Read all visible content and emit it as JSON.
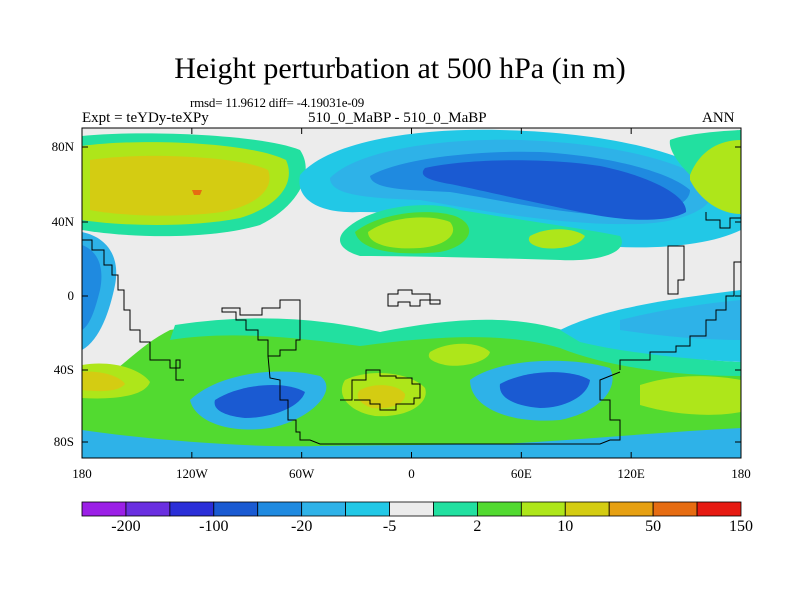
{
  "title": "Height perturbation at 500 hPa (in m)",
  "stats": "rmsd= 11.9612 diff= -4.19031e-09",
  "expt_label": "Expt = teYDy-teXPy",
  "subtitle": "510_0_MaBP - 510_0_MaBP",
  "season": "ANN",
  "y_ticks": [
    "80N",
    "40N",
    "0",
    "40S",
    "80S"
  ],
  "x_ticks": [
    "180",
    "120W",
    "60W",
    "0",
    "60E",
    "120E",
    "180"
  ],
  "colorbar": {
    "colors": [
      "#9b1fe6",
      "#6a2fe0",
      "#2b2fd8",
      "#1a5ad2",
      "#1f8ae0",
      "#2eb2e8",
      "#22c8e6",
      "#ececec",
      "#22e0a0",
      "#52da30",
      "#aee61a",
      "#d4cc12",
      "#e6a012",
      "#e66c12",
      "#e61a12"
    ],
    "labels": [
      "-200",
      "-100",
      "-20",
      "-5",
      "2",
      "10",
      "50",
      "150"
    ]
  },
  "map_colors": {
    "neutral": "#ececec",
    "light_pos": "#22e0a0",
    "pos10": "#52da30",
    "pos50": "#aee61a",
    "pos100": "#d4cc12",
    "pos150": "#e66c12",
    "neg5": "#22c8e6",
    "neg20": "#2eb2e8",
    "neg50": "#1f8ae0",
    "neg100": "#1a5ad2"
  }
}
